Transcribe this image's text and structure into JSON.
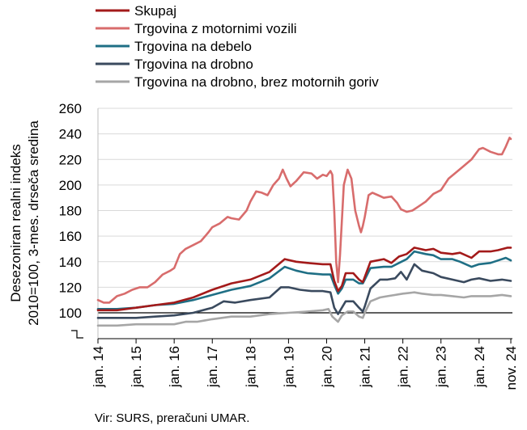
{
  "chart_data": {
    "type": "line",
    "title": "",
    "ylabel_lines": [
      "Desezoniran realni indeks",
      "2010=100, 3-mes. drseča sredina"
    ],
    "xlabel": "",
    "ylim": [
      80,
      260
    ],
    "yticks": [
      100,
      120,
      140,
      160,
      180,
      200,
      220,
      240,
      260
    ],
    "xlim": [
      2014.0,
      2024.875
    ],
    "xticks": [
      {
        "x": 2014.0,
        "label": "jan. 14"
      },
      {
        "x": 2015.0,
        "label": "jan. 15"
      },
      {
        "x": 2016.0,
        "label": "jan. 16"
      },
      {
        "x": 2017.0,
        "label": "jan. 17"
      },
      {
        "x": 2018.0,
        "label": "jan. 18"
      },
      {
        "x": 2019.0,
        "label": "jan. 19"
      },
      {
        "x": 2020.0,
        "label": "jan. 20"
      },
      {
        "x": 2021.0,
        "label": "jan. 21"
      },
      {
        "x": 2022.0,
        "label": "jan. 22"
      },
      {
        "x": 2023.0,
        "label": "jan. 23"
      },
      {
        "x": 2024.0,
        "label": "jan. 24"
      },
      {
        "x": 2024.833,
        "label": "nov. 24"
      }
    ],
    "reference_line": 100,
    "axis_break": true,
    "legend_position": "top-left",
    "series": [
      {
        "name": "Skupaj",
        "color": "#a31a1a",
        "points": [
          [
            2014.0,
            102
          ],
          [
            2014.5,
            102
          ],
          [
            2015.0,
            104
          ],
          [
            2015.5,
            106
          ],
          [
            2016.0,
            108
          ],
          [
            2016.5,
            112
          ],
          [
            2017.0,
            118
          ],
          [
            2017.5,
            123
          ],
          [
            2018.0,
            126
          ],
          [
            2018.5,
            132
          ],
          [
            2018.9,
            142
          ],
          [
            2019.2,
            140
          ],
          [
            2019.5,
            139
          ],
          [
            2019.9,
            138
          ],
          [
            2020.1,
            138
          ],
          [
            2020.2,
            125
          ],
          [
            2020.3,
            117
          ],
          [
            2020.4,
            121
          ],
          [
            2020.5,
            131
          ],
          [
            2020.7,
            131
          ],
          [
            2020.85,
            126
          ],
          [
            2020.95,
            124
          ],
          [
            2021.0,
            128
          ],
          [
            2021.15,
            140
          ],
          [
            2021.5,
            142
          ],
          [
            2021.7,
            139
          ],
          [
            2021.9,
            144
          ],
          [
            2022.1,
            146
          ],
          [
            2022.3,
            151
          ],
          [
            2022.6,
            149
          ],
          [
            2022.8,
            150
          ],
          [
            2023.0,
            147
          ],
          [
            2023.3,
            146
          ],
          [
            2023.5,
            147
          ],
          [
            2023.8,
            143
          ],
          [
            2024.0,
            148
          ],
          [
            2024.3,
            148
          ],
          [
            2024.5,
            149
          ],
          [
            2024.75,
            151
          ],
          [
            2024.833,
            151
          ]
        ]
      },
      {
        "name": "Trgovina z motornimi vozili",
        "color": "#d86c6c",
        "points": [
          [
            2014.0,
            110
          ],
          [
            2014.15,
            108
          ],
          [
            2014.3,
            108
          ],
          [
            2014.5,
            113
          ],
          [
            2014.7,
            115
          ],
          [
            2014.9,
            118
          ],
          [
            2015.1,
            120
          ],
          [
            2015.3,
            120
          ],
          [
            2015.5,
            124
          ],
          [
            2015.7,
            130
          ],
          [
            2015.9,
            133
          ],
          [
            2016.0,
            135
          ],
          [
            2016.15,
            146
          ],
          [
            2016.3,
            150
          ],
          [
            2016.5,
            153
          ],
          [
            2016.7,
            156
          ],
          [
            2016.9,
            163
          ],
          [
            2017.0,
            167
          ],
          [
            2017.2,
            170
          ],
          [
            2017.4,
            175
          ],
          [
            2017.5,
            174
          ],
          [
            2017.7,
            173
          ],
          [
            2017.9,
            180
          ],
          [
            2018.0,
            187
          ],
          [
            2018.15,
            195
          ],
          [
            2018.3,
            194
          ],
          [
            2018.45,
            192
          ],
          [
            2018.6,
            200
          ],
          [
            2018.75,
            205
          ],
          [
            2018.85,
            212
          ],
          [
            2018.95,
            205
          ],
          [
            2019.05,
            199
          ],
          [
            2019.2,
            203
          ],
          [
            2019.4,
            210
          ],
          [
            2019.6,
            209
          ],
          [
            2019.75,
            205
          ],
          [
            2019.9,
            208
          ],
          [
            2020.0,
            207
          ],
          [
            2020.1,
            211
          ],
          [
            2020.15,
            208
          ],
          [
            2020.2,
            180
          ],
          [
            2020.25,
            140
          ],
          [
            2020.3,
            124
          ],
          [
            2020.35,
            145
          ],
          [
            2020.45,
            200
          ],
          [
            2020.55,
            212
          ],
          [
            2020.65,
            205
          ],
          [
            2020.75,
            180
          ],
          [
            2020.85,
            168
          ],
          [
            2020.9,
            163
          ],
          [
            2020.95,
            168
          ],
          [
            2021.0,
            175
          ],
          [
            2021.1,
            192
          ],
          [
            2021.2,
            194
          ],
          [
            2021.35,
            192
          ],
          [
            2021.5,
            190
          ],
          [
            2021.7,
            191
          ],
          [
            2021.85,
            186
          ],
          [
            2021.95,
            181
          ],
          [
            2022.1,
            179
          ],
          [
            2022.25,
            180
          ],
          [
            2022.4,
            183
          ],
          [
            2022.6,
            187
          ],
          [
            2022.8,
            193
          ],
          [
            2023.0,
            196
          ],
          [
            2023.2,
            205
          ],
          [
            2023.4,
            210
          ],
          [
            2023.6,
            215
          ],
          [
            2023.8,
            220
          ],
          [
            2024.0,
            228
          ],
          [
            2024.1,
            229
          ],
          [
            2024.3,
            226
          ],
          [
            2024.5,
            224
          ],
          [
            2024.6,
            224
          ],
          [
            2024.7,
            230
          ],
          [
            2024.8,
            237
          ],
          [
            2024.833,
            236
          ]
        ]
      },
      {
        "name": "Trgovina na debelo",
        "color": "#1f6f85",
        "points": [
          [
            2014.0,
            103
          ],
          [
            2014.5,
            103
          ],
          [
            2015.0,
            104
          ],
          [
            2015.5,
            106
          ],
          [
            2016.0,
            107
          ],
          [
            2016.5,
            110
          ],
          [
            2017.0,
            114
          ],
          [
            2017.5,
            118
          ],
          [
            2018.0,
            121
          ],
          [
            2018.5,
            127
          ],
          [
            2018.9,
            136
          ],
          [
            2019.2,
            133
          ],
          [
            2019.5,
            131
          ],
          [
            2019.9,
            130
          ],
          [
            2020.1,
            130
          ],
          [
            2020.2,
            122
          ],
          [
            2020.3,
            115
          ],
          [
            2020.4,
            119
          ],
          [
            2020.5,
            126
          ],
          [
            2020.7,
            126
          ],
          [
            2020.85,
            123
          ],
          [
            2020.95,
            123
          ],
          [
            2021.0,
            126
          ],
          [
            2021.15,
            135
          ],
          [
            2021.5,
            136
          ],
          [
            2021.7,
            136
          ],
          [
            2021.9,
            139
          ],
          [
            2022.1,
            142
          ],
          [
            2022.3,
            148
          ],
          [
            2022.6,
            146
          ],
          [
            2022.8,
            145
          ],
          [
            2023.0,
            142
          ],
          [
            2023.3,
            142
          ],
          [
            2023.5,
            140
          ],
          [
            2023.8,
            136
          ],
          [
            2024.0,
            138
          ],
          [
            2024.3,
            139
          ],
          [
            2024.5,
            141
          ],
          [
            2024.7,
            143
          ],
          [
            2024.833,
            141
          ]
        ]
      },
      {
        "name": "Trgovina na drobno",
        "color": "#3a4a5e",
        "points": [
          [
            2014.0,
            96
          ],
          [
            2014.5,
            96
          ],
          [
            2015.0,
            96
          ],
          [
            2015.5,
            97
          ],
          [
            2016.0,
            98
          ],
          [
            2016.5,
            100
          ],
          [
            2017.0,
            104
          ],
          [
            2017.3,
            109
          ],
          [
            2017.6,
            108
          ],
          [
            2018.0,
            110
          ],
          [
            2018.5,
            112
          ],
          [
            2018.8,
            120
          ],
          [
            2019.0,
            120
          ],
          [
            2019.3,
            118
          ],
          [
            2019.6,
            117
          ],
          [
            2019.9,
            117
          ],
          [
            2020.1,
            116
          ],
          [
            2020.2,
            104
          ],
          [
            2020.3,
            99
          ],
          [
            2020.4,
            104
          ],
          [
            2020.5,
            109
          ],
          [
            2020.7,
            109
          ],
          [
            2020.85,
            104
          ],
          [
            2020.95,
            101
          ],
          [
            2021.0,
            105
          ],
          [
            2021.15,
            119
          ],
          [
            2021.4,
            126
          ],
          [
            2021.6,
            126
          ],
          [
            2021.8,
            127
          ],
          [
            2021.95,
            132
          ],
          [
            2022.1,
            126
          ],
          [
            2022.3,
            138
          ],
          [
            2022.5,
            133
          ],
          [
            2022.8,
            131
          ],
          [
            2023.0,
            128
          ],
          [
            2023.3,
            126
          ],
          [
            2023.6,
            124
          ],
          [
            2023.8,
            126
          ],
          [
            2024.0,
            127
          ],
          [
            2024.3,
            125
          ],
          [
            2024.6,
            126
          ],
          [
            2024.833,
            125
          ]
        ]
      },
      {
        "name": "Trgovina na drobno, brez motornih goriv",
        "color": "#a6a6a6",
        "points": [
          [
            2014.0,
            90
          ],
          [
            2014.5,
            90
          ],
          [
            2015.0,
            91
          ],
          [
            2015.5,
            91
          ],
          [
            2016.0,
            91
          ],
          [
            2016.3,
            93
          ],
          [
            2016.6,
            93
          ],
          [
            2017.0,
            95
          ],
          [
            2017.5,
            97
          ],
          [
            2018.0,
            97
          ],
          [
            2018.5,
            99
          ],
          [
            2019.0,
            100
          ],
          [
            2019.5,
            101
          ],
          [
            2019.9,
            102
          ],
          [
            2020.05,
            103
          ],
          [
            2020.15,
            97
          ],
          [
            2020.3,
            93
          ],
          [
            2020.4,
            98
          ],
          [
            2020.55,
            101
          ],
          [
            2020.7,
            101
          ],
          [
            2020.85,
            97
          ],
          [
            2020.95,
            96
          ],
          [
            2021.0,
            100
          ],
          [
            2021.15,
            109
          ],
          [
            2021.4,
            112
          ],
          [
            2021.6,
            113
          ],
          [
            2021.8,
            114
          ],
          [
            2022.0,
            115
          ],
          [
            2022.3,
            116
          ],
          [
            2022.5,
            115
          ],
          [
            2022.8,
            114
          ],
          [
            2023.0,
            114
          ],
          [
            2023.3,
            113
          ],
          [
            2023.6,
            112
          ],
          [
            2023.8,
            113
          ],
          [
            2024.0,
            113
          ],
          [
            2024.3,
            113
          ],
          [
            2024.6,
            114
          ],
          [
            2024.833,
            113
          ]
        ]
      }
    ]
  },
  "source_text": "Vir: SURS, preračuni UMAR."
}
